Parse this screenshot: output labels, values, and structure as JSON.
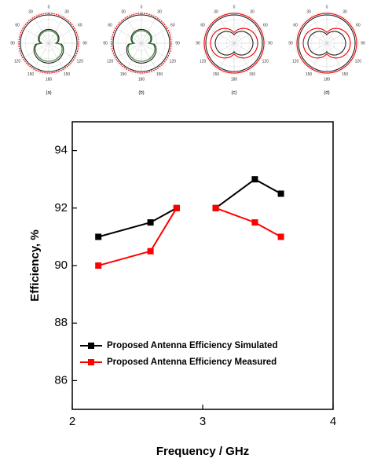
{
  "panels": {
    "labels": [
      "(a)",
      "(b)",
      "(c)",
      "(d)"
    ],
    "angles": [
      0,
      30,
      60,
      90,
      120,
      150,
      180
    ]
  },
  "chart_data": {
    "type": "line",
    "x": [
      2.2,
      2.6,
      2.8,
      null,
      3.1,
      3.4,
      3.6
    ],
    "series": [
      {
        "name": "Proposed Antenna Efficiency Simulated",
        "color": "#000000",
        "values": [
          91,
          91.5,
          92,
          null,
          92,
          93,
          92.5
        ]
      },
      {
        "name": "Proposed Antenna Efficiency Measured",
        "color": "#ff0000",
        "values": [
          90,
          90.5,
          92,
          null,
          92,
          91.5,
          91
        ]
      }
    ],
    "xlabel": "Frequency / GHz",
    "ylabel": "Efficiency, %",
    "xlim": [
      2,
      4
    ],
    "xticks": [
      2,
      3,
      4
    ],
    "ylim": [
      85,
      95
    ],
    "yticks": [
      86,
      88,
      90,
      92,
      94
    ],
    "legend": "upper-left"
  }
}
